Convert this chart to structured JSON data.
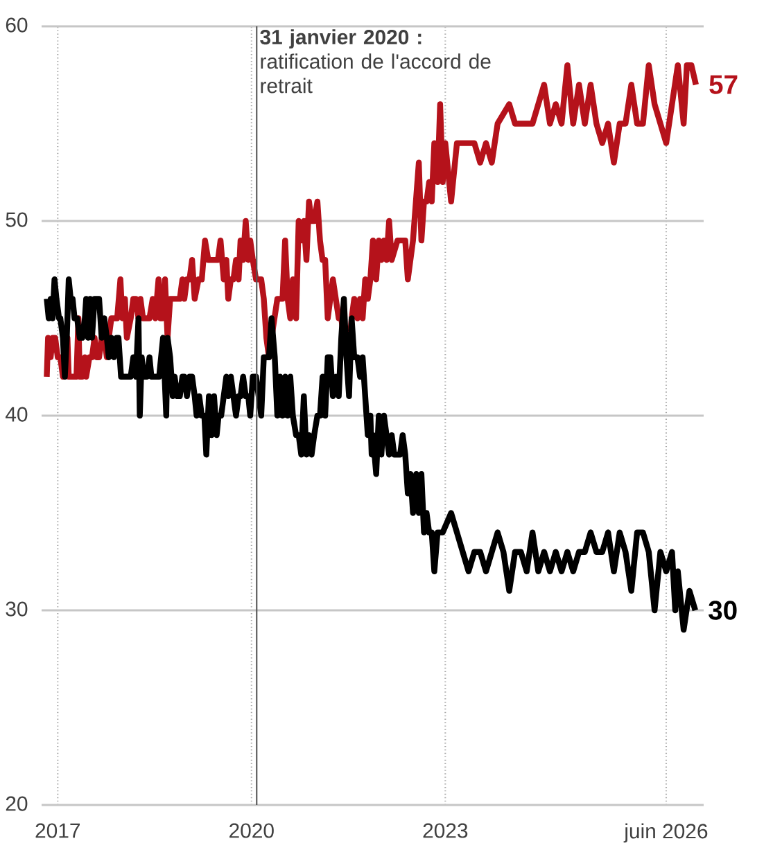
{
  "chart_data": {
    "type": "line",
    "xlim": [
      2016.75,
      2027.0
    ],
    "ylim": [
      20,
      60
    ],
    "xticks": [
      2017,
      2020,
      2023,
      {
        "value": 2026.42,
        "label": "juin 2026"
      }
    ],
    "yticks": [
      20,
      30,
      40,
      50,
      60
    ],
    "grid": true,
    "series": [
      {
        "color": "#b5121b",
        "x": [
          2016.83,
          2016.85,
          2016.89,
          2016.92,
          2016.96,
          2017.0,
          2017.04,
          2017.08,
          2017.11,
          2017.15,
          2017.17,
          2017.23,
          2017.29,
          2017.32,
          2017.34,
          2017.38,
          2017.42,
          2017.44,
          2017.49,
          2017.53,
          2017.57,
          2017.6,
          2017.64,
          2017.68,
          2017.72,
          2017.76,
          2017.79,
          2017.83,
          2017.87,
          2017.92,
          2017.97,
          2018.0,
          2018.04,
          2018.07,
          2018.13,
          2018.17,
          2018.21,
          2018.25,
          2018.28,
          2018.32,
          2018.36,
          2018.42,
          2018.47,
          2018.51,
          2018.56,
          2018.59,
          2018.62,
          2018.66,
          2018.7,
          2018.74,
          2018.78,
          2018.81,
          2018.89,
          2018.93,
          2018.96,
          2019.0,
          2019.04,
          2019.08,
          2019.12,
          2019.18,
          2019.23,
          2019.28,
          2019.33,
          2019.42,
          2019.48,
          2019.52,
          2019.57,
          2019.61,
          2019.64,
          2019.68,
          2019.72,
          2019.76,
          2019.8,
          2019.83,
          2019.87,
          2019.91,
          2019.95,
          2019.98,
          2020.02,
          2020.07,
          2020.11,
          2020.15,
          2020.19,
          2020.23,
          2020.27,
          2020.31,
          2020.4,
          2020.48,
          2020.52,
          2020.56,
          2020.6,
          2020.64,
          2020.69,
          2020.73,
          2020.77,
          2020.81,
          2020.85,
          2020.89,
          2020.93,
          2020.97,
          2021.02,
          2021.06,
          2021.1,
          2021.14,
          2021.18,
          2021.26,
          2021.35,
          2021.39,
          2021.43,
          2021.5,
          2021.55,
          2021.59,
          2021.64,
          2021.68,
          2021.72,
          2021.76,
          2021.8,
          2021.84,
          2021.88,
          2021.93,
          2021.97,
          2022.01,
          2022.05,
          2022.09,
          2022.13,
          2022.17,
          2022.26,
          2022.38,
          2022.42,
          2022.5,
          2022.59,
          2022.63,
          2022.67,
          2022.71,
          2022.75,
          2022.79,
          2022.83,
          2022.88,
          2022.92,
          2022.96,
          2023.0,
          2023.09,
          2023.18,
          2023.45,
          2023.54,
          2023.63,
          2023.72,
          2023.81,
          2023.99,
          2024.08,
          2024.26,
          2024.35,
          2024.44,
          2024.53,
          2024.62,
          2024.71,
          2024.8,
          2024.89,
          2024.98,
          2025.07,
          2025.16,
          2025.25,
          2025.34,
          2025.43,
          2025.52,
          2025.61,
          2025.7,
          2025.79,
          2025.88,
          2025.97,
          2026.06,
          2026.15,
          2026.24,
          2026.33,
          2026.42,
          2026.51,
          2026.6,
          2026.69,
          2026.74,
          2026.81,
          2026.88
        ],
        "values": [
          42,
          44,
          43,
          44,
          44,
          43,
          43,
          42,
          43,
          44,
          42,
          42,
          42,
          45,
          42,
          42,
          43,
          42,
          43,
          43,
          44,
          43,
          43,
          44,
          44,
          43,
          44,
          45,
          45,
          45,
          47,
          45,
          46,
          44,
          45,
          46,
          46,
          45,
          46,
          45,
          45,
          45,
          46,
          45,
          47,
          45,
          45,
          47,
          44,
          46,
          46,
          46,
          46,
          47,
          46,
          47,
          47,
          48,
          46,
          47,
          47,
          49,
          48,
          48,
          48,
          49,
          47,
          48,
          46,
          47,
          47,
          48,
          47,
          49,
          48,
          50,
          48,
          49,
          48,
          47,
          47,
          47,
          46,
          44,
          43,
          44,
          46,
          46,
          49,
          46,
          45,
          47,
          45,
          50,
          49,
          50,
          48,
          51,
          50,
          50,
          51,
          49,
          48,
          48,
          45,
          47,
          45,
          45,
          44,
          43,
          45,
          46,
          45,
          46,
          45,
          47,
          46,
          47,
          49,
          47,
          49,
          48,
          49,
          48,
          50,
          48,
          49,
          49,
          47,
          49,
          53,
          49,
          51,
          51,
          52,
          51,
          54,
          52,
          56,
          52,
          54,
          51,
          54,
          54,
          53,
          54,
          53,
          55,
          56,
          55,
          55,
          55,
          56,
          57,
          55,
          56,
          55,
          58,
          55,
          57,
          55,
          57,
          55,
          54,
          55,
          53,
          55,
          55,
          57,
          55,
          55,
          58,
          56,
          55,
          54,
          56,
          58,
          55,
          58,
          58,
          57
        ]
      },
      {
        "color": "#000000",
        "x": [
          2016.83,
          2016.86,
          2016.89,
          2016.92,
          2016.95,
          2016.98,
          2017.02,
          2017.04,
          2017.08,
          2017.11,
          2017.14,
          2017.17,
          2017.2,
          2017.23,
          2017.26,
          2017.3,
          2017.34,
          2017.38,
          2017.42,
          2017.44,
          2017.47,
          2017.5,
          2017.53,
          2017.57,
          2017.6,
          2017.64,
          2017.68,
          2017.72,
          2017.76,
          2017.79,
          2017.83,
          2017.87,
          2017.91,
          2017.94,
          2017.98,
          2018.06,
          2018.13,
          2018.17,
          2018.21,
          2018.25,
          2018.27,
          2018.3,
          2018.33,
          2018.38,
          2018.42,
          2018.45,
          2018.51,
          2018.57,
          2018.6,
          2018.63,
          2018.68,
          2018.7,
          2018.74,
          2018.78,
          2018.81,
          2018.85,
          2018.89,
          2018.93,
          2018.96,
          2019.0,
          2019.04,
          2019.08,
          2019.12,
          2019.15,
          2019.19,
          2019.23,
          2019.27,
          2019.3,
          2019.34,
          2019.38,
          2019.42,
          2019.46,
          2019.49,
          2019.53,
          2019.57,
          2019.61,
          2019.64,
          2019.68,
          2019.72,
          2019.76,
          2019.8,
          2019.83,
          2019.87,
          2019.91,
          2019.95,
          2019.98,
          2020.02,
          2020.07,
          2020.11,
          2020.15,
          2020.19,
          2020.27,
          2020.31,
          2020.36,
          2020.4,
          2020.44,
          2020.48,
          2020.52,
          2020.56,
          2020.6,
          2020.64,
          2020.69,
          2020.73,
          2020.77,
          2020.81,
          2020.85,
          2020.89,
          2020.93,
          2020.97,
          2021.02,
          2021.06,
          2021.1,
          2021.14,
          2021.18,
          2021.22,
          2021.26,
          2021.31,
          2021.35,
          2021.39,
          2021.43,
          2021.47,
          2021.51,
          2021.55,
          2021.59,
          2021.64,
          2021.68,
          2021.72,
          2021.76,
          2021.8,
          2021.84,
          2021.86,
          2021.88,
          2021.93,
          2021.97,
          2022.01,
          2022.05,
          2022.09,
          2022.13,
          2022.17,
          2022.21,
          2022.3,
          2022.34,
          2022.38,
          2022.42,
          2022.46,
          2022.5,
          2022.55,
          2022.59,
          2022.63,
          2022.67,
          2022.71,
          2022.75,
          2022.79,
          2022.83,
          2022.88,
          2022.96,
          2023.09,
          2023.18,
          2023.27,
          2023.36,
          2023.45,
          2023.54,
          2023.63,
          2023.72,
          2023.81,
          2023.9,
          2023.99,
          2024.08,
          2024.17,
          2024.26,
          2024.35,
          2024.44,
          2024.53,
          2024.62,
          2024.71,
          2024.8,
          2024.89,
          2024.98,
          2025.07,
          2025.16,
          2025.25,
          2025.34,
          2025.43,
          2025.52,
          2025.61,
          2025.7,
          2025.79,
          2025.88,
          2025.97,
          2026.06,
          2026.15,
          2026.24,
          2026.33,
          2026.42,
          2026.51,
          2026.56,
          2026.6,
          2026.69,
          2026.78,
          2026.87
        ],
        "values": [
          46,
          45,
          46,
          45,
          47,
          46,
          45,
          45,
          44,
          42,
          44,
          47,
          46,
          46,
          45,
          45,
          44,
          44,
          45,
          46,
          44,
          46,
          44,
          46,
          46,
          46,
          44,
          45,
          44,
          43,
          44,
          43,
          44,
          44,
          42,
          42,
          42,
          43,
          42,
          45,
          40,
          43,
          42,
          42,
          43,
          42,
          42,
          42,
          43,
          44,
          40,
          44,
          43,
          41,
          42,
          41,
          41,
          42,
          42,
          41,
          42,
          42,
          41,
          40,
          41,
          40,
          40,
          38,
          41,
          39,
          41,
          39,
          40,
          40,
          41,
          42,
          41,
          42,
          41,
          40,
          41,
          41,
          42,
          41,
          41,
          40,
          42,
          42,
          41,
          40,
          43,
          43,
          45,
          43,
          40,
          42,
          40,
          42,
          40,
          42,
          40,
          39,
          39,
          38,
          41,
          38,
          39,
          38,
          39,
          40,
          40,
          42,
          40,
          43,
          43,
          41,
          42,
          41,
          44,
          46,
          43,
          41,
          45,
          43,
          43,
          42,
          43,
          41,
          39,
          40,
          38,
          39,
          37,
          40,
          38,
          40,
          39,
          38,
          39,
          38,
          38,
          39,
          38,
          36,
          37,
          35,
          37,
          35,
          37,
          34,
          35,
          34,
          34,
          32,
          34,
          34,
          35,
          34,
          33,
          32,
          33,
          33,
          32,
          33,
          34,
          33,
          31,
          33,
          33,
          32,
          34,
          32,
          33,
          32,
          33,
          32,
          33,
          32,
          33,
          33,
          34,
          33,
          33,
          34,
          32,
          34,
          33,
          31,
          34,
          34,
          33,
          30,
          33,
          32,
          33,
          30,
          32,
          29,
          31,
          30
        ]
      }
    ],
    "annotations": [
      {
        "text": "57",
        "x": 2026.88,
        "y": 57
      },
      {
        "text": "30",
        "x": 2026.87,
        "y": 30
      }
    ],
    "ref_lines": [
      {
        "axis": "x",
        "value": 2020.08,
        "label": "**31 janvier 2020 :** ratification de l'accord de retrait",
        "color": "#555555"
      }
    ]
  }
}
